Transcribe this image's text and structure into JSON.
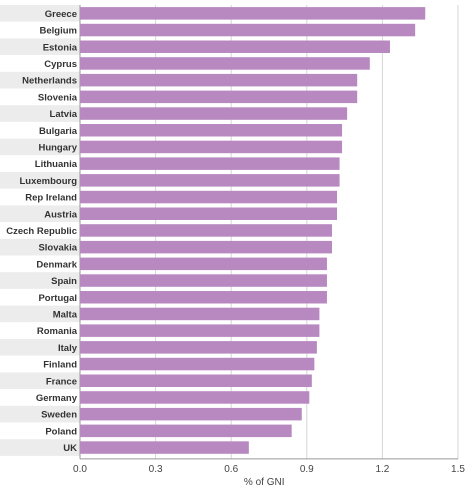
{
  "chart_data": {
    "type": "bar",
    "orientation": "horizontal",
    "title": "",
    "xlabel": "% of GNI",
    "ylabel": "",
    "xlim": [
      0,
      1.5
    ],
    "xticks": [
      "0.0",
      "0.3",
      "0.6",
      "0.9",
      "1.2",
      "1.5"
    ],
    "grid": true,
    "legend": "none",
    "bar_color": "#b888c0",
    "categories": [
      "Greece",
      "Belgium",
      "Estonia",
      "Cyprus",
      "Netherlands",
      "Slovenia",
      "Latvia",
      "Bulgaria",
      "Hungary",
      "Lithuania",
      "Luxembourg",
      "Rep Ireland",
      "Austria",
      "Czech Republic",
      "Slovakia",
      "Denmark",
      "Spain",
      "Portugal",
      "Malta",
      "Romania",
      "Italy",
      "Finland",
      "France",
      "Germany",
      "Sweden",
      "Poland",
      "UK"
    ],
    "values": [
      1.37,
      1.33,
      1.23,
      1.15,
      1.1,
      1.1,
      1.06,
      1.04,
      1.04,
      1.03,
      1.03,
      1.02,
      1.02,
      1.0,
      1.0,
      0.98,
      0.98,
      0.98,
      0.95,
      0.95,
      0.94,
      0.93,
      0.92,
      0.91,
      0.88,
      0.84,
      0.67
    ]
  }
}
